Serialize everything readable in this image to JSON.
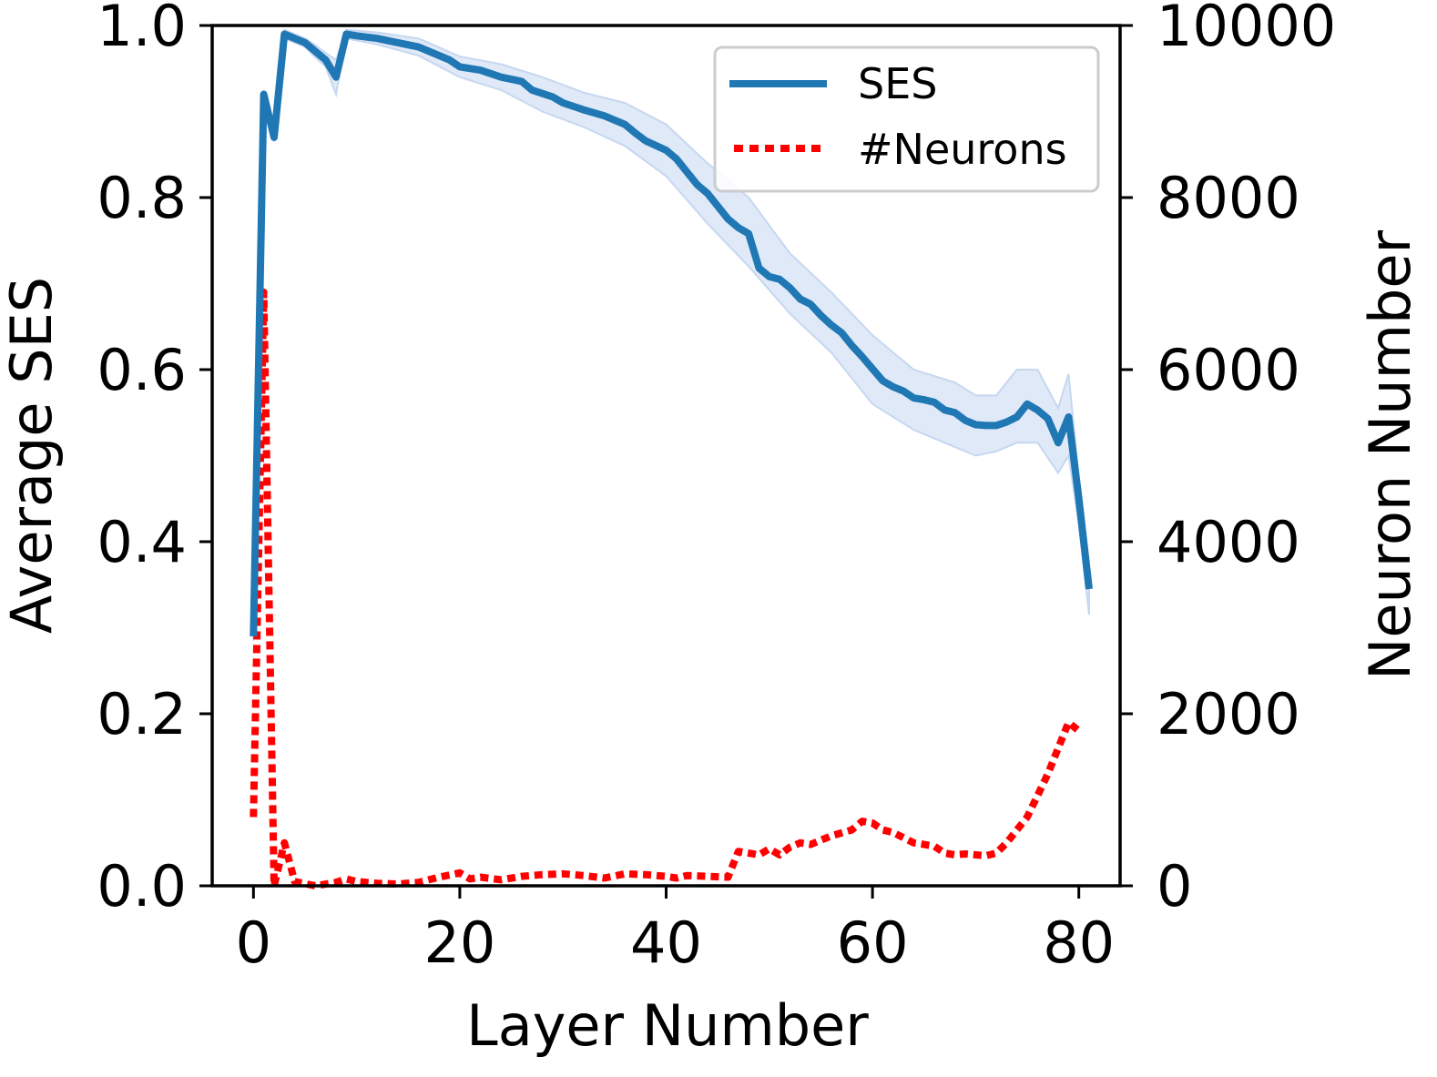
{
  "chart_data": {
    "type": "line",
    "title": "",
    "xlabel": "Layer Number",
    "ylabel_left": "Average SES",
    "ylabel_right": "Neuron Number",
    "xlim": [
      -4,
      84
    ],
    "ylim_left": [
      0,
      1.0
    ],
    "ylim_right": [
      0,
      10000
    ],
    "xticks": [
      0,
      20,
      40,
      60,
      80
    ],
    "xtick_labels": [
      "0",
      "20",
      "40",
      "60",
      "80"
    ],
    "yticks_left": [
      0,
      0.2,
      0.4,
      0.6,
      0.8,
      1.0
    ],
    "ytick_labels_left": [
      "0.0",
      "0.2",
      "0.4",
      "0.6",
      "0.8",
      "1.0"
    ],
    "yticks_right": [
      0,
      2000,
      4000,
      6000,
      8000,
      10000
    ],
    "ytick_labels_right": [
      "0",
      "2000",
      "4000",
      "6000",
      "8000",
      "10000"
    ],
    "grid": false,
    "legend_position": "top-right",
    "colors": {
      "ses": "#1f77b4",
      "ses_band": "#c6d7f0",
      "neurons": "#ff0000"
    },
    "series": [
      {
        "name": "SES",
        "axis": "left",
        "style": "solid",
        "points": [
          [
            0,
            0.29
          ],
          [
            1,
            0.92
          ],
          [
            2,
            0.87
          ],
          [
            3,
            0.99
          ],
          [
            4,
            0.985
          ],
          [
            5,
            0.98
          ],
          [
            6,
            0.97
          ],
          [
            7,
            0.96
          ],
          [
            8,
            0.94
          ],
          [
            9,
            0.99
          ],
          [
            10,
            0.988
          ],
          [
            12,
            0.985
          ],
          [
            14,
            0.98
          ],
          [
            16,
            0.975
          ],
          [
            18,
            0.965
          ],
          [
            19,
            0.96
          ],
          [
            20,
            0.952
          ],
          [
            22,
            0.948
          ],
          [
            24,
            0.94
          ],
          [
            26,
            0.935
          ],
          [
            27,
            0.925
          ],
          [
            29,
            0.917
          ],
          [
            30,
            0.91
          ],
          [
            32,
            0.902
          ],
          [
            34,
            0.895
          ],
          [
            36,
            0.885
          ],
          [
            37,
            0.875
          ],
          [
            38,
            0.866
          ],
          [
            40,
            0.855
          ],
          [
            41,
            0.845
          ],
          [
            42,
            0.83
          ],
          [
            43,
            0.815
          ],
          [
            44,
            0.805
          ],
          [
            45,
            0.79
          ],
          [
            46,
            0.775
          ],
          [
            47,
            0.765
          ],
          [
            48,
            0.758
          ],
          [
            49,
            0.718
          ],
          [
            50,
            0.708
          ],
          [
            51,
            0.705
          ],
          [
            52,
            0.695
          ],
          [
            53,
            0.682
          ],
          [
            54,
            0.676
          ],
          [
            55,
            0.663
          ],
          [
            56,
            0.652
          ],
          [
            57,
            0.643
          ],
          [
            58,
            0.628
          ],
          [
            59,
            0.615
          ],
          [
            60,
            0.601
          ],
          [
            61,
            0.587
          ],
          [
            62,
            0.58
          ],
          [
            63,
            0.575
          ],
          [
            64,
            0.567
          ],
          [
            65,
            0.565
          ],
          [
            66,
            0.562
          ],
          [
            67,
            0.553
          ],
          [
            68,
            0.55
          ],
          [
            69,
            0.541
          ],
          [
            70,
            0.536
          ],
          [
            71,
            0.535
          ],
          [
            72,
            0.535
          ],
          [
            73,
            0.539
          ],
          [
            74,
            0.545
          ],
          [
            75,
            0.56
          ],
          [
            76,
            0.553
          ],
          [
            77,
            0.543
          ],
          [
            78,
            0.515
          ],
          [
            79,
            0.545
          ],
          [
            80,
            0.45
          ],
          [
            81,
            0.345
          ]
        ],
        "band": [
          [
            0,
            0.285,
            0.295
          ],
          [
            1,
            0.915,
            0.925
          ],
          [
            2,
            0.865,
            0.875
          ],
          [
            3,
            0.985,
            0.995
          ],
          [
            4,
            0.98,
            0.99
          ],
          [
            5,
            0.975,
            0.985
          ],
          [
            6,
            0.963,
            0.977
          ],
          [
            7,
            0.952,
            0.968
          ],
          [
            8,
            0.92,
            0.96
          ],
          [
            9,
            0.985,
            0.995
          ],
          [
            12,
            0.978,
            0.992
          ],
          [
            16,
            0.965,
            0.985
          ],
          [
            20,
            0.94,
            0.964
          ],
          [
            24,
            0.925,
            0.955
          ],
          [
            28,
            0.9,
            0.94
          ],
          [
            32,
            0.882,
            0.922
          ],
          [
            36,
            0.86,
            0.91
          ],
          [
            40,
            0.825,
            0.885
          ],
          [
            44,
            0.77,
            0.84
          ],
          [
            48,
            0.72,
            0.8
          ],
          [
            52,
            0.665,
            0.735
          ],
          [
            56,
            0.62,
            0.69
          ],
          [
            60,
            0.56,
            0.64
          ],
          [
            64,
            0.53,
            0.6
          ],
          [
            68,
            0.51,
            0.585
          ],
          [
            70,
            0.5,
            0.57
          ],
          [
            72,
            0.505,
            0.57
          ],
          [
            74,
            0.515,
            0.6
          ],
          [
            76,
            0.515,
            0.6
          ],
          [
            78,
            0.48,
            0.555
          ],
          [
            79,
            0.5,
            0.595
          ],
          [
            80,
            0.42,
            0.475
          ],
          [
            81,
            0.315,
            0.37
          ]
        ]
      },
      {
        "name": "#Neurons",
        "axis": "right",
        "style": "dotted",
        "points": [
          [
            0,
            800
          ],
          [
            1,
            6900
          ],
          [
            2,
            0
          ],
          [
            3,
            500
          ],
          [
            4,
            50
          ],
          [
            6,
            0
          ],
          [
            8,
            40
          ],
          [
            9,
            80
          ],
          [
            10,
            50
          ],
          [
            12,
            30
          ],
          [
            14,
            20
          ],
          [
            16,
            40
          ],
          [
            18,
            100
          ],
          [
            20,
            150
          ],
          [
            21,
            80
          ],
          [
            22,
            100
          ],
          [
            24,
            70
          ],
          [
            26,
            110
          ],
          [
            28,
            130
          ],
          [
            30,
            140
          ],
          [
            32,
            120
          ],
          [
            34,
            90
          ],
          [
            36,
            140
          ],
          [
            38,
            130
          ],
          [
            40,
            110
          ],
          [
            41,
            90
          ],
          [
            42,
            120
          ],
          [
            44,
            110
          ],
          [
            46,
            100
          ],
          [
            47,
            400
          ],
          [
            48,
            380
          ],
          [
            49,
            360
          ],
          [
            50,
            430
          ],
          [
            51,
            360
          ],
          [
            52,
            450
          ],
          [
            53,
            500
          ],
          [
            54,
            480
          ],
          [
            56,
            580
          ],
          [
            58,
            650
          ],
          [
            59,
            750
          ],
          [
            60,
            730
          ],
          [
            61,
            650
          ],
          [
            62,
            620
          ],
          [
            63,
            560
          ],
          [
            64,
            500
          ],
          [
            65,
            480
          ],
          [
            66,
            460
          ],
          [
            67,
            380
          ],
          [
            68,
            360
          ],
          [
            69,
            370
          ],
          [
            70,
            360
          ],
          [
            71,
            350
          ],
          [
            72,
            380
          ],
          [
            73,
            500
          ],
          [
            74,
            650
          ],
          [
            75,
            800
          ],
          [
            76,
            1050
          ],
          [
            77,
            1300
          ],
          [
            78,
            1600
          ],
          [
            79,
            1900
          ],
          [
            80,
            1800
          ]
        ]
      }
    ]
  }
}
